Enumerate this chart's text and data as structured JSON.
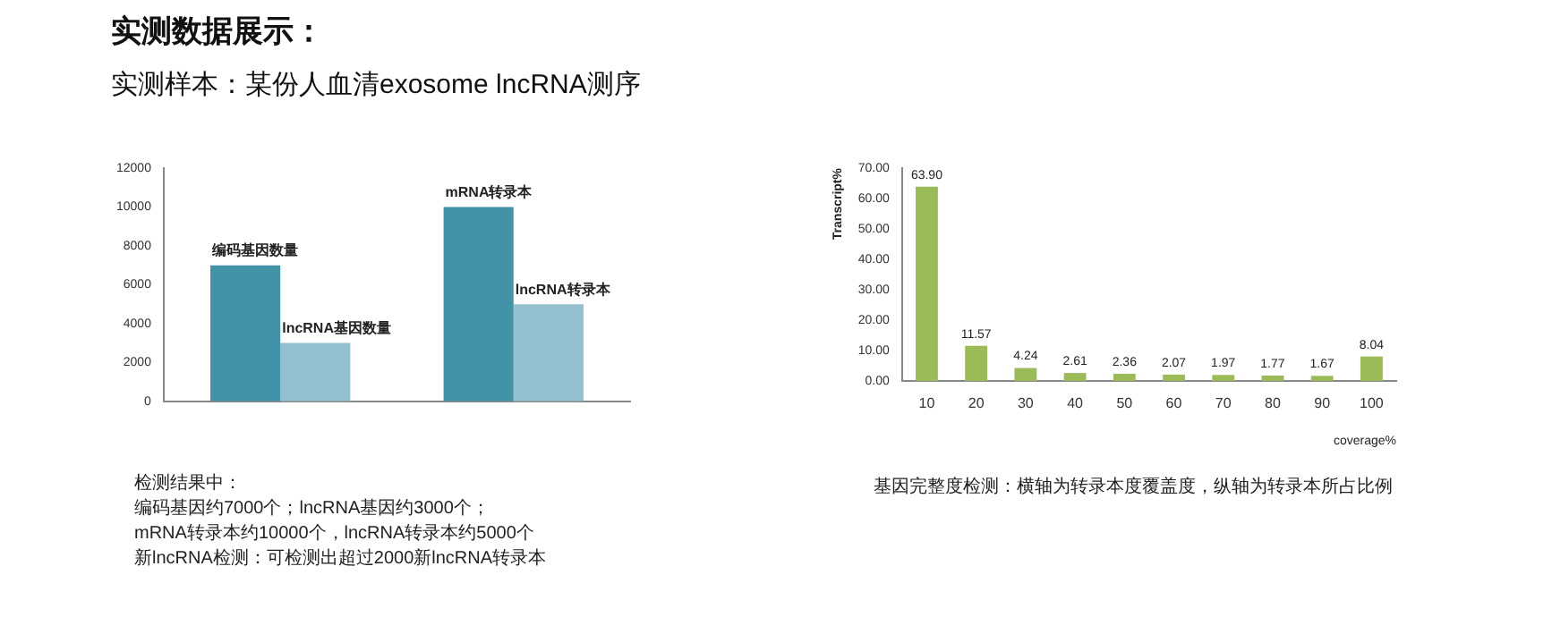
{
  "chart_data": [
    {
      "type": "bar",
      "title": "实测数据展示：",
      "subtitle": "实测样本：某份人血清exosome lncRNA测序",
      "categories": [
        null,
        null
      ],
      "series": [
        {
          "color": "#4393a8",
          "values": [
            7000,
            10000
          ]
        },
        {
          "color": "#93bfcf",
          "values": [
            3000,
            5000
          ]
        }
      ],
      "ylim": [
        0,
        12000
      ],
      "yticks": [
        0,
        2000,
        4000,
        6000,
        8000,
        10000,
        12000
      ],
      "grid": false,
      "legend": false,
      "annotations": [
        {
          "text": "编码基因数量",
          "y": 7000
        },
        {
          "text": "lncRNA基因数量",
          "y": 3000
        },
        {
          "text": "mRNA转录本",
          "y": 10000
        },
        {
          "text": "lncRNA转录本",
          "y": 5000
        },
        "检测结果中：",
        "编码基因约7000个；lncRNA基因约3000个；",
        "mRNA转录本约10000个，lncRNA转录本约5000个",
        "新lncRNA检测：可检测出超过2000新lncRNA转录本"
      ]
    },
    {
      "type": "bar",
      "categories": [
        "10",
        "20",
        "30",
        "40",
        "50",
        "60",
        "70",
        "80",
        "90",
        "100"
      ],
      "values": [
        63.9,
        11.57,
        4.24,
        2.61,
        2.36,
        2.07,
        1.97,
        1.77,
        1.67,
        8.04
      ],
      "value_labels": [
        "63.90",
        "11.57",
        "4.24",
        "2.61",
        "2.36",
        "2.07",
        "1.97",
        "1.77",
        "1.67",
        "8.04"
      ],
      "color": "#9bbb59",
      "xlabel": "coverage%",
      "ylabel": "Transcript%",
      "ylim": [
        0,
        70
      ],
      "yticks": [
        {
          "value": 0,
          "label": "0.00"
        },
        {
          "value": 10,
          "label": "10.00"
        },
        {
          "value": 20,
          "label": "20.00"
        },
        {
          "value": 30,
          "label": "30.00"
        },
        {
          "value": 40,
          "label": "40.00"
        },
        {
          "value": 50,
          "label": "50.00"
        },
        {
          "value": 60,
          "label": "60.00"
        },
        {
          "value": 70,
          "label": "70.00"
        }
      ],
      "grid": false,
      "legend": false,
      "annotations": [
        "基因完整度检测：横轴为转录本度覆盖度，纵轴为转录本所占比例"
      ]
    }
  ]
}
